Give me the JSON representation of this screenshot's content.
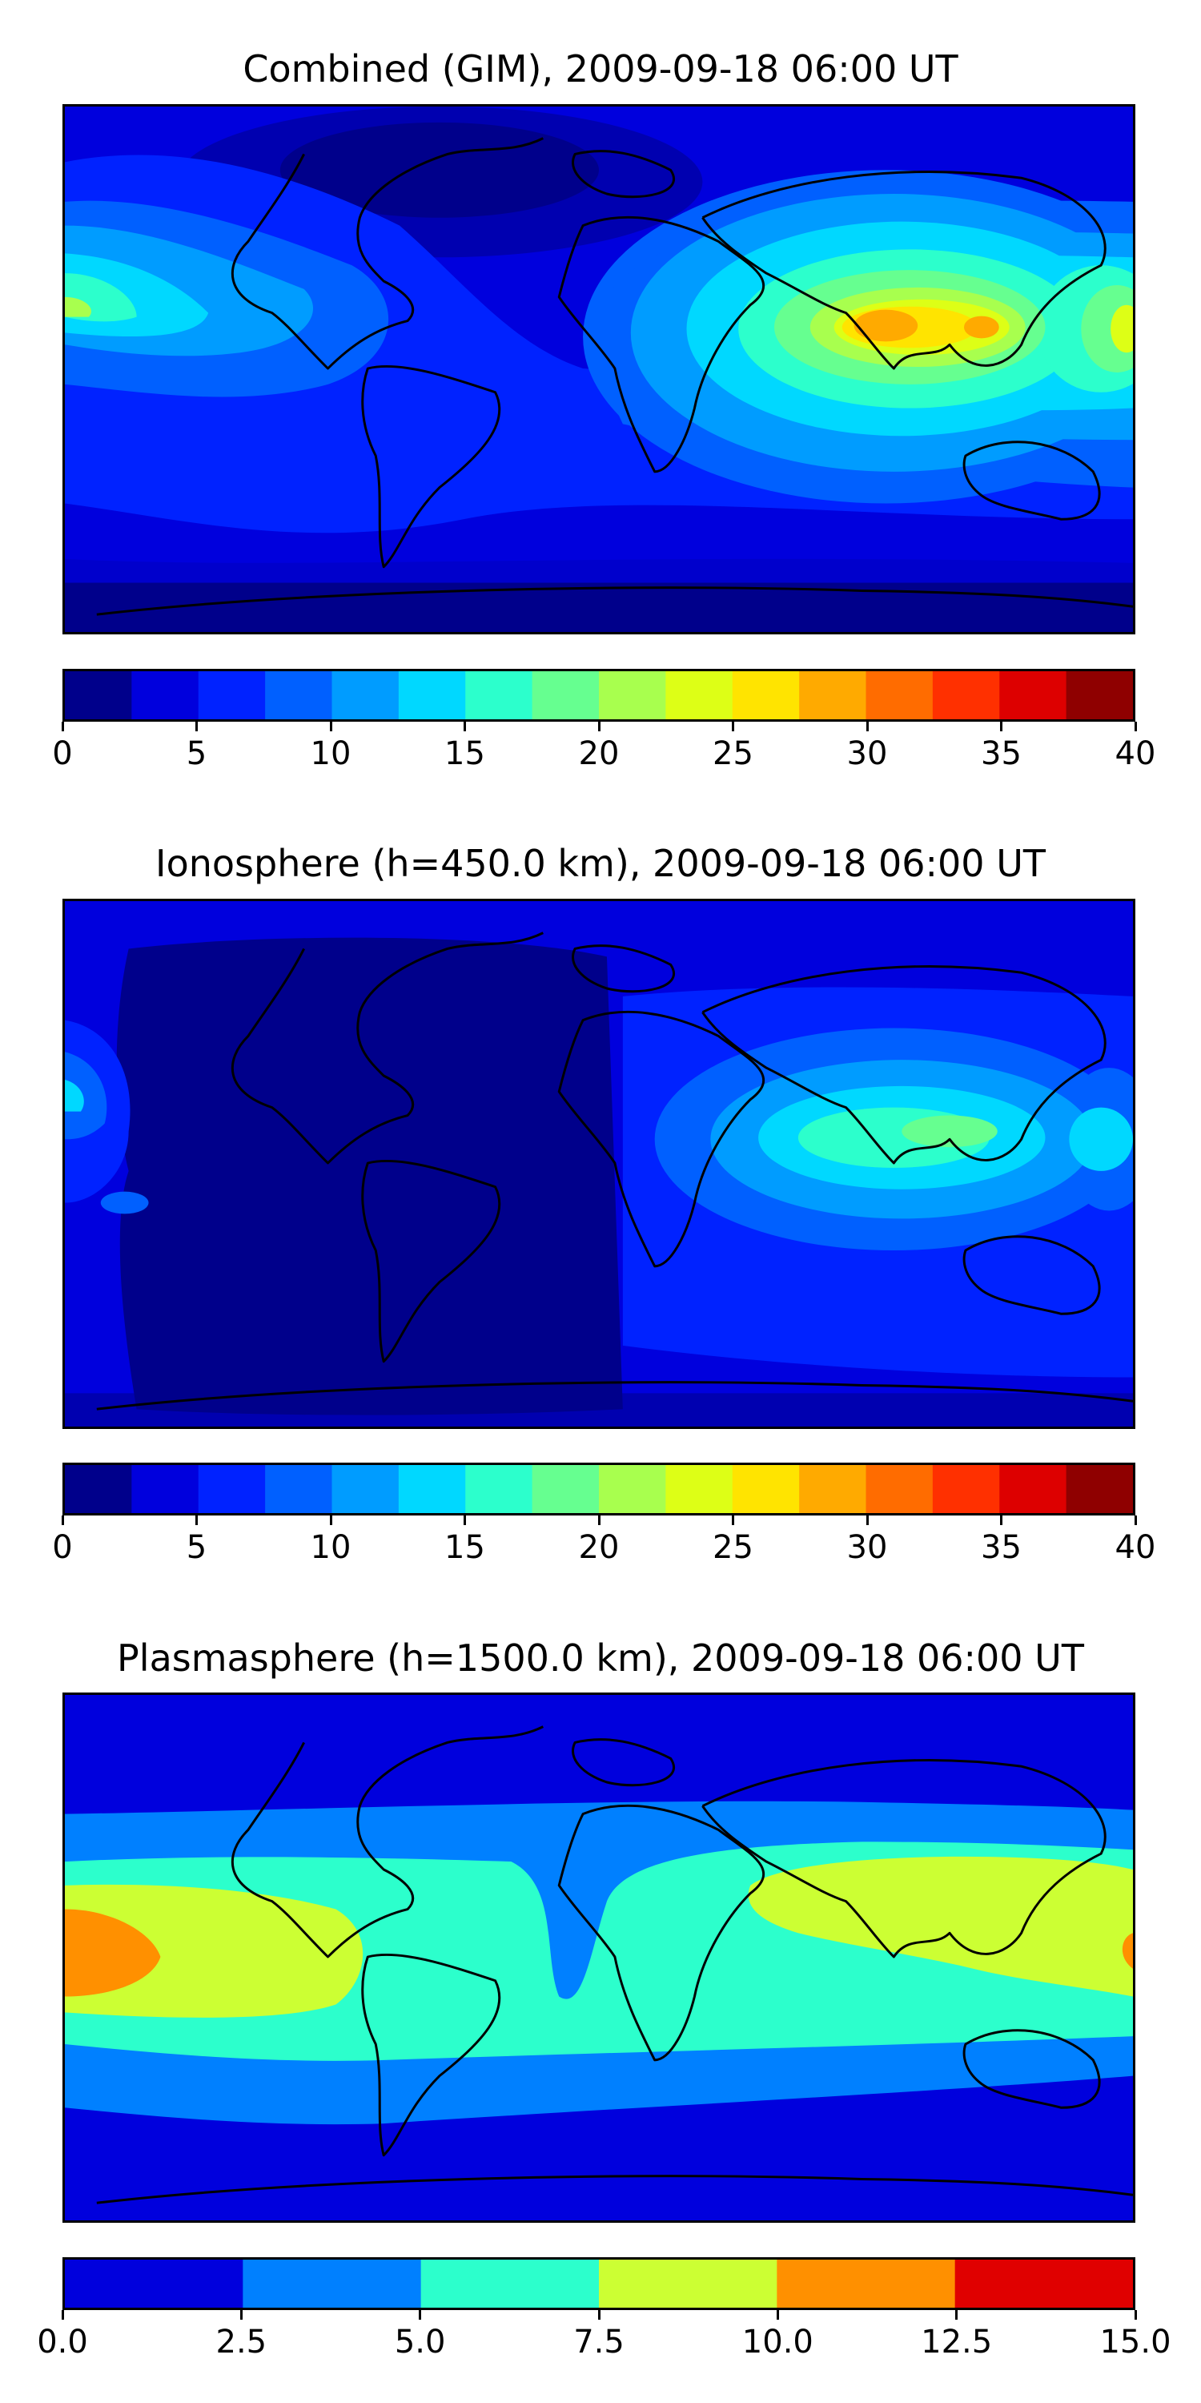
{
  "panels": [
    {
      "title": "Combined (GIM), 2009-09-18 06:00 UT",
      "colorbar": {
        "min": 0,
        "max": 40,
        "ticks": [
          "0",
          "5",
          "10",
          "15",
          "20",
          "25",
          "30",
          "35",
          "40"
        ],
        "tick_values": [
          0,
          5,
          10,
          15,
          20,
          25,
          30,
          35,
          40
        ],
        "colors": [
          "#00008b",
          "#0000dd",
          "#0022ff",
          "#0060ff",
          "#009cff",
          "#00d8ff",
          "#2cffcc",
          "#66ff90",
          "#a8ff4e",
          "#ddff16",
          "#ffe400",
          "#ffaa00",
          "#ff6c00",
          "#ff3000",
          "#dd0000",
          "#8f0000"
        ]
      }
    },
    {
      "title": "Ionosphere  (h=450.0 km), 2009-09-18 06:00 UT",
      "colorbar": {
        "min": 0,
        "max": 40,
        "ticks": [
          "0",
          "5",
          "10",
          "15",
          "20",
          "25",
          "30",
          "35",
          "40"
        ],
        "tick_values": [
          0,
          5,
          10,
          15,
          20,
          25,
          30,
          35,
          40
        ],
        "colors": [
          "#00008b",
          "#0000dd",
          "#0022ff",
          "#0060ff",
          "#009cff",
          "#00d8ff",
          "#2cffcc",
          "#66ff90",
          "#a8ff4e",
          "#ddff16",
          "#ffe400",
          "#ffaa00",
          "#ff6c00",
          "#ff3000",
          "#dd0000",
          "#8f0000"
        ]
      }
    },
    {
      "title": "Plasmasphere (h=1500.0 km), 2009-09-18 06:00 UT",
      "colorbar": {
        "min": 0,
        "max": 15,
        "ticks": [
          "0.0",
          "2.5",
          "5.0",
          "7.5",
          "10.0",
          "12.5",
          "15.0"
        ],
        "tick_values": [
          0,
          2.5,
          5,
          7.5,
          10,
          12.5,
          15
        ],
        "colors": [
          "#0000dd",
          "#0080ff",
          "#2cffcc",
          "#ccff33",
          "#ff9000",
          "#e00000"
        ]
      }
    }
  ]
}
